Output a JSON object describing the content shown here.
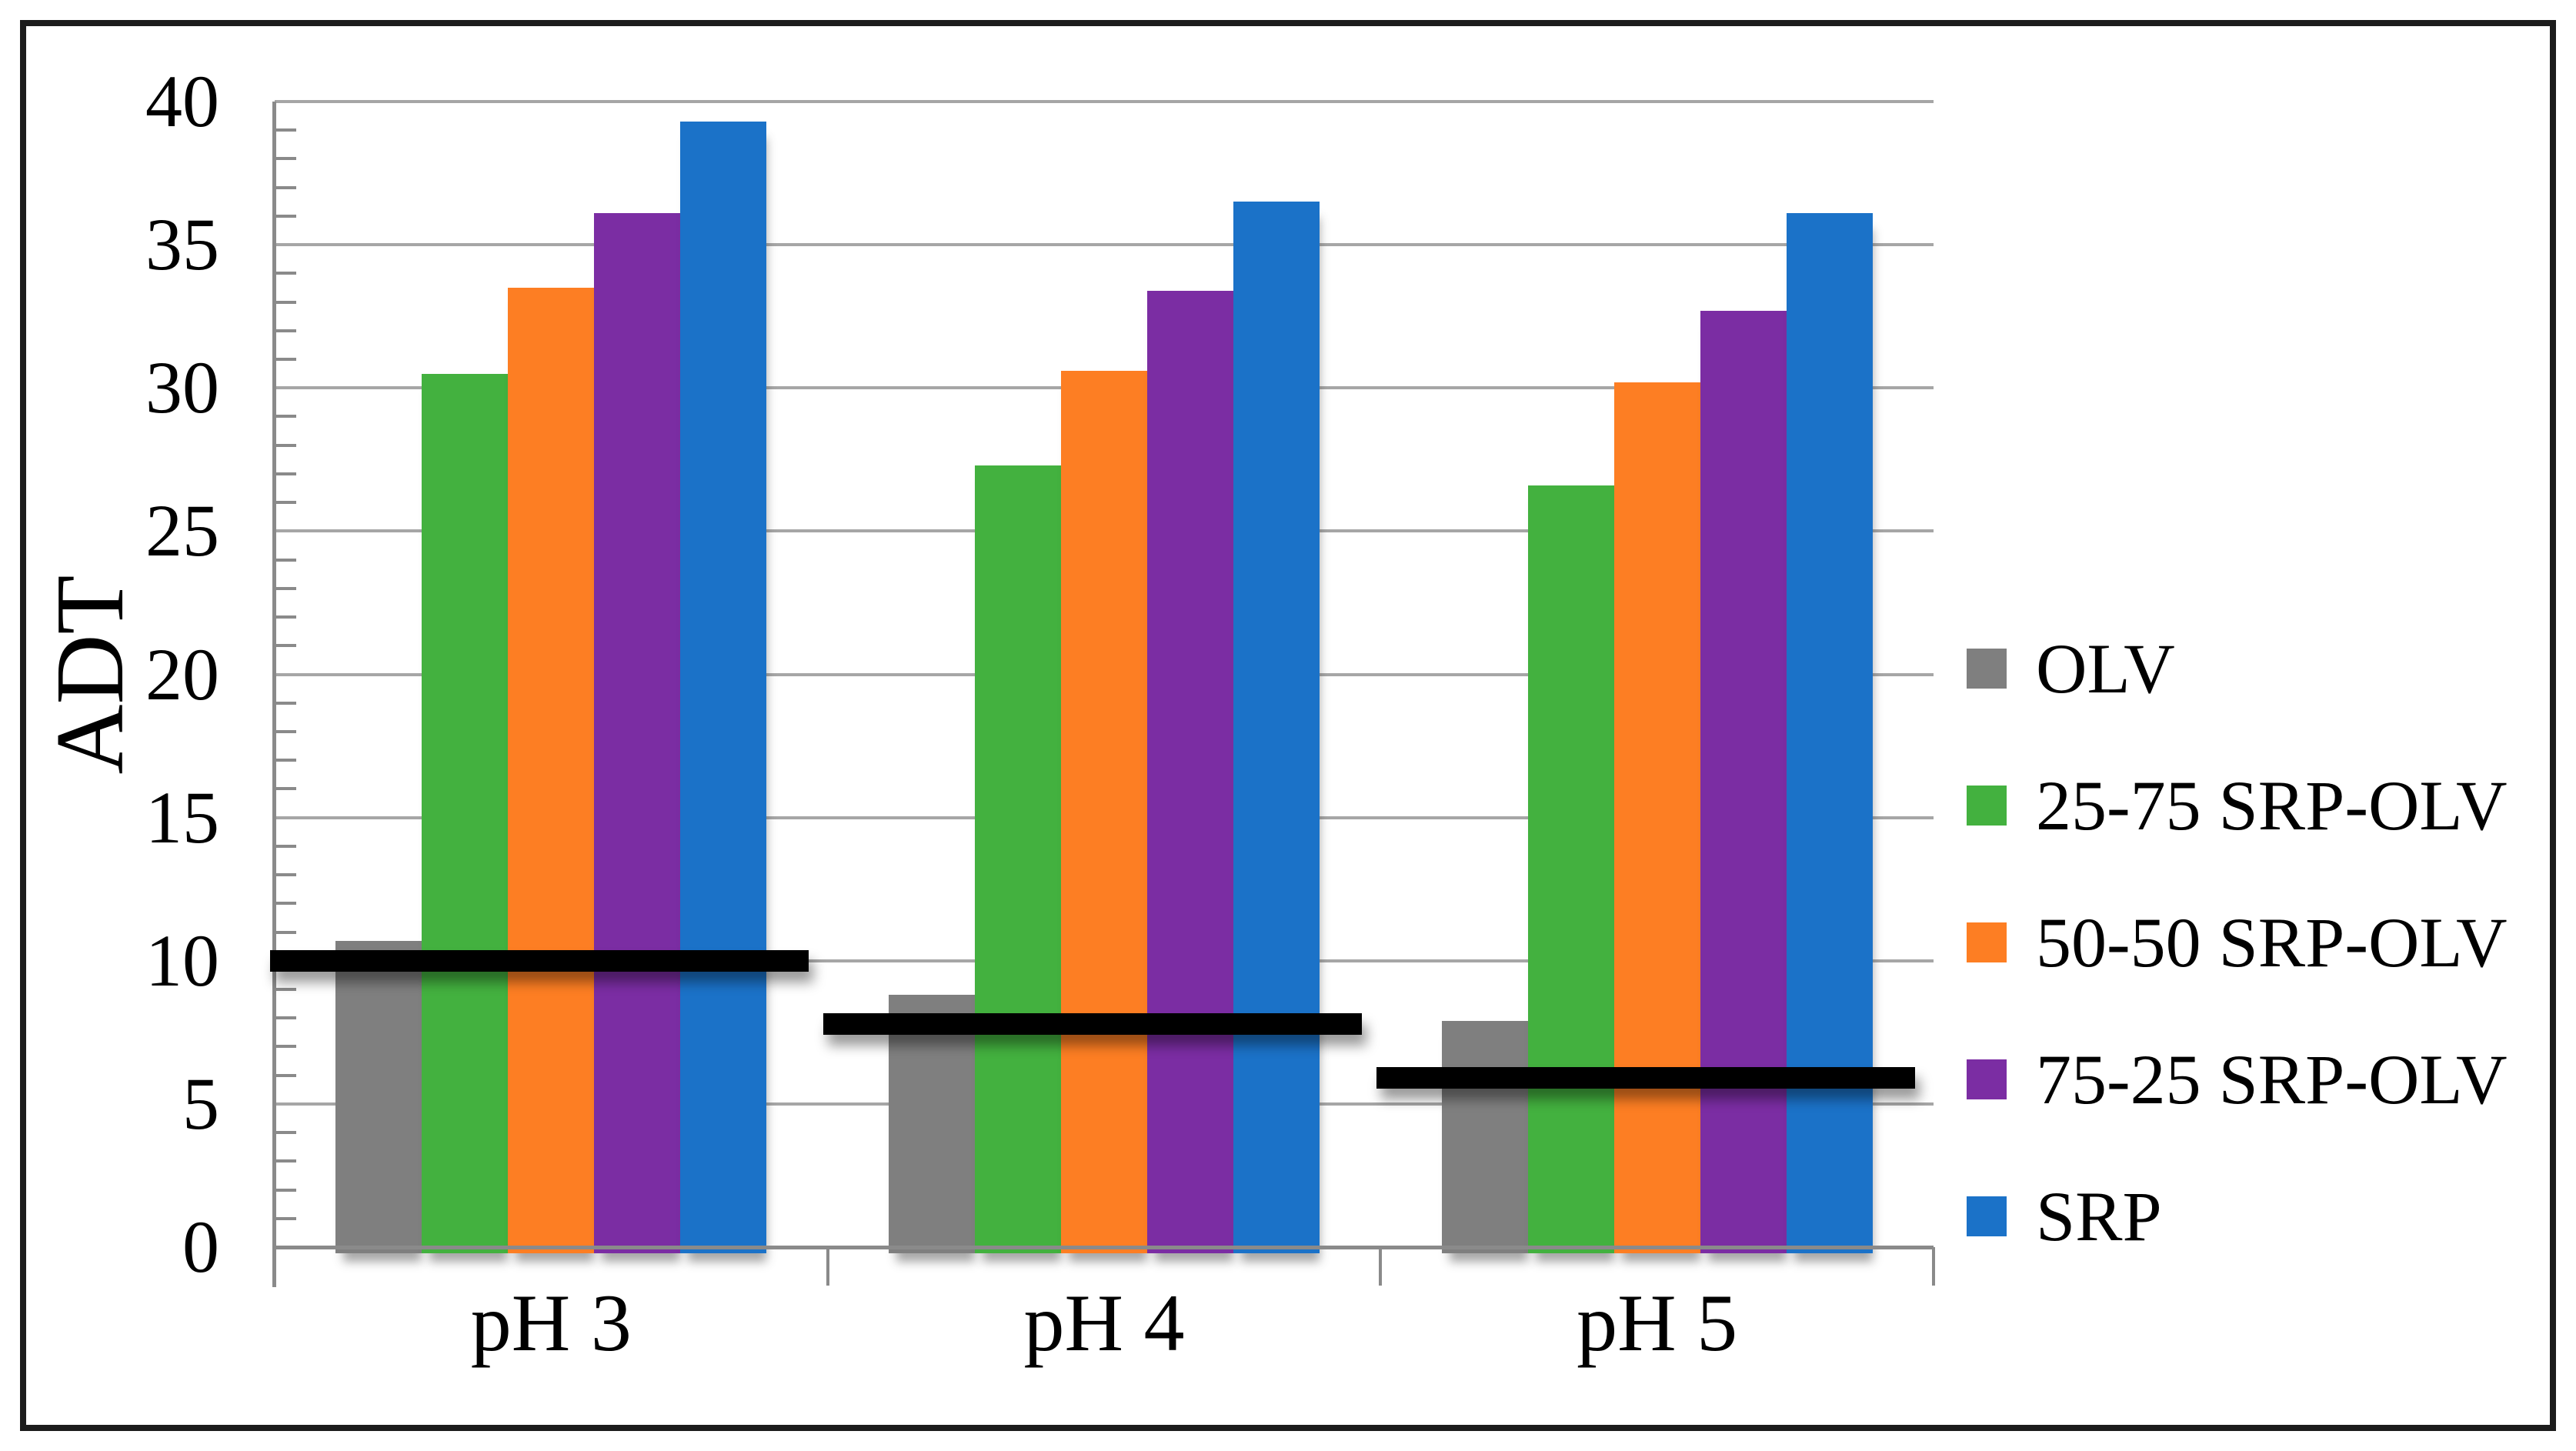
{
  "figure": {
    "background": "#ffffff",
    "frame_color": "#1c1c1c"
  },
  "chart_data": {
    "type": "bar",
    "title": "",
    "xlabel": "",
    "ylabel": "ADT",
    "categories": [
      "pH 3",
      "pH 4",
      "pH 5"
    ],
    "series": [
      {
        "name": "OLV",
        "color": "#7F7F7F",
        "values": [
          10.7,
          8.8,
          7.9
        ]
      },
      {
        "name": "25-75 SRP-OLV",
        "color": "#43B13F",
        "values": [
          30.5,
          27.3,
          26.6
        ]
      },
      {
        "name": "50-50 SRP-OLV",
        "color": "#FD7E23",
        "values": [
          33.5,
          30.6,
          30.2
        ]
      },
      {
        "name": "75-25 SRP-OLV",
        "color": "#7B2DA3",
        "values": [
          36.1,
          33.4,
          32.7
        ]
      },
      {
        "name": "SRP",
        "color": "#1B72C8",
        "values": [
          39.3,
          36.5,
          36.1
        ]
      }
    ],
    "reference_lines": {
      "description": "thick black horizontal line per category",
      "color": "#000000",
      "values": [
        10.0,
        7.8,
        5.9
      ]
    },
    "ylim": [
      0,
      40
    ],
    "yticks": [
      0,
      5,
      10,
      15,
      20,
      25,
      30,
      35,
      40
    ],
    "minor_tick_interval": 1,
    "grid": "horizontal-major",
    "gridline_color": "#A6A6A6",
    "axis_color": "#8A8A8A",
    "legend_position": "right-middle"
  }
}
